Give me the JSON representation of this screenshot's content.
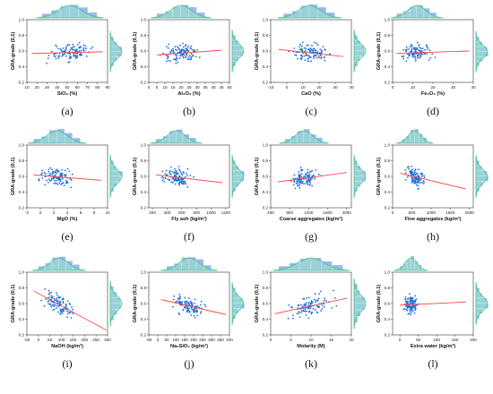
{
  "colors": {
    "points": "#1f6fd6",
    "fit": "#ff4d4d",
    "hist": "#7fa8f0",
    "kde": "#3fc28a",
    "kde_fill": "#9be3c3"
  },
  "chart_data": [
    {
      "label": "(a)",
      "type": "scatter",
      "xlabel": "SiO₂ (%)",
      "ylabel": "GRA-grade (0,1)",
      "xticks": [
        10,
        20,
        30,
        40,
        50,
        60,
        70,
        80,
        90
      ],
      "xlim": [
        10,
        90
      ],
      "yticks": [
        0.2,
        0.4,
        0.6,
        0.8,
        1.0
      ],
      "ylim": [
        0.2,
        1.0
      ],
      "fit": {
        "x": [
          15,
          85
        ],
        "y": [
          0.57,
          0.59
        ]
      },
      "cluster": {
        "x": [
          25,
          80
        ],
        "y": [
          0.4,
          0.78
        ]
      }
    },
    {
      "label": "(b)",
      "type": "scatter",
      "xlabel": "Al₂O₃ (%)",
      "ylabel": "GRA-grade (0,1)",
      "xticks": [
        0,
        5,
        10,
        15,
        20,
        25,
        30,
        35,
        40,
        45,
        50
      ],
      "xlim": [
        0,
        50
      ],
      "yticks": [
        0.2,
        0.4,
        0.6,
        0.8,
        1.0
      ],
      "ylim": [
        0.2,
        1.0
      ],
      "fit": {
        "x": [
          5,
          45
        ],
        "y": [
          0.55,
          0.61
        ]
      },
      "cluster": {
        "x": [
          5,
          35
        ],
        "y": [
          0.4,
          0.8
        ]
      }
    },
    {
      "label": "(c)",
      "type": "scatter",
      "xlabel": "CaO (%)",
      "ylabel": "GRA-grade (0,1)",
      "xticks": [
        -10,
        0,
        10,
        20,
        30,
        40
      ],
      "xlim": [
        -10,
        40
      ],
      "yticks": [
        0.2,
        0.4,
        0.6,
        0.8,
        1.0
      ],
      "ylim": [
        0.2,
        1.0
      ],
      "fit": {
        "x": [
          -5,
          35
        ],
        "y": [
          0.62,
          0.53
        ]
      },
      "cluster": {
        "x": [
          -2,
          30
        ],
        "y": [
          0.4,
          0.8
        ]
      }
    },
    {
      "label": "(d)",
      "type": "scatter",
      "xlabel": "Fe₂O₃ (%)",
      "ylabel": "GRA-grade (0,1)",
      "xticks": [
        0,
        10,
        20,
        30,
        40
      ],
      "xlim": [
        0,
        40
      ],
      "yticks": [
        0.2,
        0.4,
        0.6,
        0.8,
        1.0
      ],
      "ylim": [
        0.2,
        1.0
      ],
      "fit": {
        "x": [
          2,
          38
        ],
        "y": [
          0.57,
          0.6
        ]
      },
      "cluster": {
        "x": [
          2,
          22
        ],
        "y": [
          0.4,
          0.78
        ]
      }
    },
    {
      "label": "(e)",
      "type": "scatter",
      "xlabel": "MgO (%)",
      "ylabel": "GRA-grade (0,1)",
      "xticks": [
        -2,
        0,
        2,
        4,
        6,
        8,
        10
      ],
      "xlim": [
        -2,
        10
      ],
      "yticks": [
        0.2,
        0.4,
        0.6,
        0.8,
        1.0
      ],
      "ylim": [
        0.2,
        1.0
      ],
      "fit": {
        "x": [
          -1,
          9
        ],
        "y": [
          0.62,
          0.55
        ]
      },
      "cluster": {
        "x": [
          -1,
          6
        ],
        "y": [
          0.4,
          0.8
        ]
      }
    },
    {
      "label": "(f)",
      "type": "scatter",
      "xlabel": "Fly ash (kg/m³)",
      "ylabel": "GRA-grade (0,1)",
      "xticks": [
        200,
        400,
        600,
        800,
        1000,
        1200
      ],
      "xlim": [
        150,
        1250
      ],
      "yticks": [
        0.2,
        0.4,
        0.6,
        0.8,
        1.0
      ],
      "ylim": [
        0.2,
        1.0
      ],
      "fit": {
        "x": [
          250,
          1150
        ],
        "y": [
          0.62,
          0.52
        ]
      },
      "cluster": {
        "x": [
          250,
          800
        ],
        "y": [
          0.4,
          0.8
        ]
      }
    },
    {
      "label": "(g)",
      "type": "scatter",
      "xlabel": "Coarse aggregates (kg/m³)",
      "ylabel": "GRA-grade (0,1)",
      "xticks": [
        400,
        800,
        1200,
        1600,
        2000
      ],
      "xlim": [
        400,
        2100
      ],
      "yticks": [
        0.2,
        0.4,
        0.6,
        0.8,
        1.0
      ],
      "ylim": [
        0.2,
        1.0
      ],
      "fit": {
        "x": [
          550,
          2000
        ],
        "y": [
          0.53,
          0.65
        ]
      },
      "cluster": {
        "x": [
          700,
          1500
        ],
        "y": [
          0.4,
          0.8
        ]
      }
    },
    {
      "label": "(h)",
      "type": "scatter",
      "xlabel": "Fine aggregates (kg/m³)",
      "ylabel": "GRA-grade (0,1)",
      "xticks": [
        0,
        500,
        1000,
        1500,
        2000
      ],
      "xlim": [
        0,
        2100
      ],
      "yticks": [
        0.2,
        0.4,
        0.6,
        0.8,
        1.0
      ],
      "ylim": [
        0.2,
        1.0
      ],
      "fit": {
        "x": [
          200,
          1900
        ],
        "y": [
          0.64,
          0.44
        ]
      },
      "cluster": {
        "x": [
          250,
          900
        ],
        "y": [
          0.4,
          0.8
        ]
      }
    },
    {
      "label": "(i)",
      "type": "scatter",
      "xlabel": "NaOH (kg/m³)",
      "ylabel": "GRA-grade (0,1)",
      "xticks": [
        -50,
        0,
        50,
        100,
        150,
        200,
        250,
        300
      ],
      "xlim": [
        -50,
        300
      ],
      "yticks": [
        0.2,
        0.4,
        0.6,
        0.8,
        1.0
      ],
      "ylim": [
        0.2,
        1.0
      ],
      "fit": {
        "x": [
          -20,
          295
        ],
        "y": [
          0.76,
          0.26
        ]
      },
      "cluster": {
        "x": [
          0,
          180
        ],
        "y": [
          0.38,
          0.82
        ]
      }
    },
    {
      "label": "(j)",
      "type": "scatter",
      "xlabel": "Na₂SiO₃ (kg/m³)",
      "ylabel": "GRA-grade (0,1)",
      "xticks": [
        -50,
        0,
        50,
        100,
        150,
        200,
        250,
        300,
        350,
        400
      ],
      "xlim": [
        -50,
        400
      ],
      "yticks": [
        0.2,
        0.4,
        0.6,
        0.8,
        1.0
      ],
      "ylim": [
        0.2,
        1.0
      ],
      "fit": {
        "x": [
          20,
          380
        ],
        "y": [
          0.65,
          0.46
        ]
      },
      "cluster": {
        "x": [
          50,
          300
        ],
        "y": [
          0.4,
          0.8
        ]
      }
    },
    {
      "label": "(k)",
      "type": "scatter",
      "xlabel": "Molarity (M)",
      "ylabel": "GRA-grade (0,1)",
      "xticks": [
        0,
        5,
        10,
        15,
        20
      ],
      "xlim": [
        0,
        20
      ],
      "yticks": [
        0.2,
        0.4,
        0.6,
        0.8,
        1.0
      ],
      "ylim": [
        0.2,
        1.0
      ],
      "fit": {
        "x": [
          1,
          19
        ],
        "y": [
          0.47,
          0.67
        ]
      },
      "cluster": {
        "x": [
          2,
          18
        ],
        "y": [
          0.35,
          0.85
        ]
      }
    },
    {
      "label": "(l)",
      "type": "scatter",
      "xlabel": "Extra water (kg/m³)",
      "ylabel": "GRA-grade (0,1)",
      "xticks": [
        0,
        50,
        100,
        150,
        200
      ],
      "xlim": [
        -20,
        200
      ],
      "yticks": [
        0.2,
        0.4,
        0.6,
        0.8,
        1.0
      ],
      "ylim": [
        0.2,
        1.0
      ],
      "fit": {
        "x": [
          0,
          180
        ],
        "y": [
          0.58,
          0.62
        ]
      },
      "cluster": {
        "x": [
          0,
          60
        ],
        "y": [
          0.4,
          0.8
        ]
      }
    }
  ]
}
